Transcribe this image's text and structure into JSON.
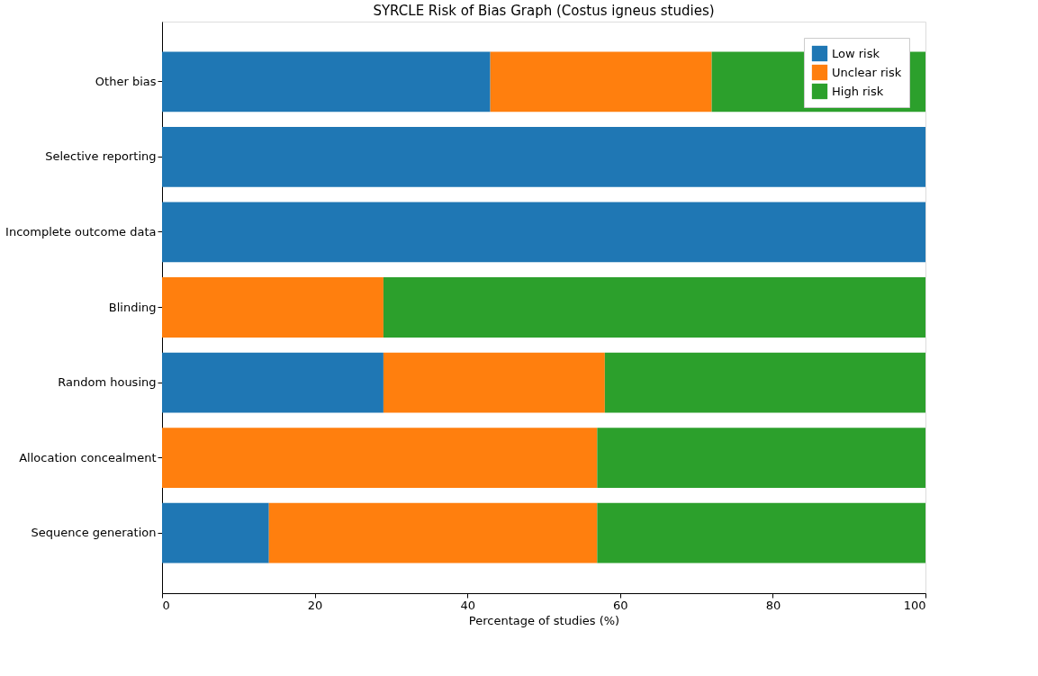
{
  "chart_data": {
    "type": "bar",
    "orientation": "horizontal",
    "stacked": true,
    "title": "SYRCLE Risk of Bias Graph (Costus igneus studies)",
    "xlabel": "Percentage of studies (%)",
    "categories": [
      "Other bias",
      "Selective reporting",
      "Incomplete outcome data",
      "Blinding",
      "Random housing",
      "Allocation concealment",
      "Sequence generation"
    ],
    "series": [
      {
        "name": "Low risk",
        "color": "#1f77b4",
        "values": [
          43,
          100,
          100,
          0,
          29,
          0,
          14
        ]
      },
      {
        "name": "Unclear risk",
        "color": "#ff7f0e",
        "values": [
          29,
          0,
          0,
          29,
          29,
          57,
          43
        ]
      },
      {
        "name": "High risk",
        "color": "#2ca02c",
        "values": [
          28,
          0,
          0,
          71,
          42,
          43,
          43
        ]
      }
    ],
    "xlim": [
      0,
      100
    ],
    "xticks": [
      0,
      20,
      40,
      60,
      80,
      100
    ],
    "grid": false,
    "legend": "top right"
  }
}
